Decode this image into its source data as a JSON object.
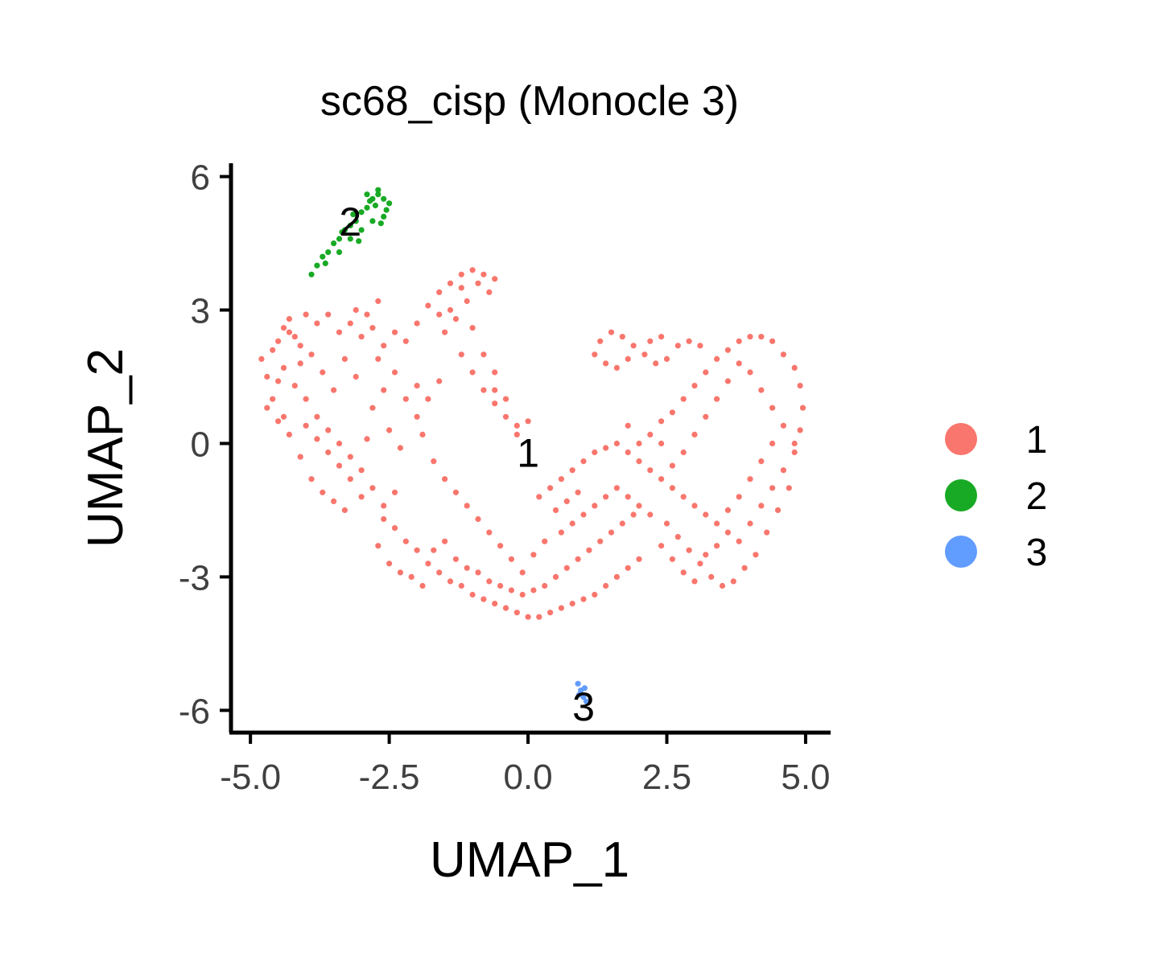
{
  "chart_data": {
    "type": "scatter",
    "title": "sc68_cisp (Monocle 3)",
    "xlabel": "UMAP_1",
    "ylabel": "UMAP_2",
    "xlim": [
      -5.35,
      5.45
    ],
    "ylim": [
      -6.5,
      6.3
    ],
    "xticks": [
      -5.0,
      -2.5,
      0.0,
      2.5,
      5.0
    ],
    "xtick_labels": [
      "-5.0",
      "-2.5",
      "0.0",
      "2.5",
      "5.0"
    ],
    "yticks": [
      -6,
      -3,
      0,
      3,
      6
    ],
    "ytick_labels": [
      "-6",
      "-3",
      "0",
      "3",
      "6"
    ],
    "legend_position": "right",
    "grid": false,
    "series": [
      {
        "name": "1",
        "color": "#F8766D",
        "label_at": [
          0.0,
          -0.2
        ],
        "points": [
          [
            -4.8,
            1.9
          ],
          [
            -4.7,
            1.5
          ],
          [
            -4.6,
            1.0
          ],
          [
            -4.5,
            0.5
          ],
          [
            -4.4,
            2.6
          ],
          [
            -4.3,
            2.8
          ],
          [
            -4.2,
            2.4
          ],
          [
            -4.3,
            0.2
          ],
          [
            -4.1,
            -0.3
          ],
          [
            -3.9,
            -0.8
          ],
          [
            -3.7,
            -1.1
          ],
          [
            -3.5,
            -1.3
          ],
          [
            -3.3,
            -1.5
          ],
          [
            -4.0,
            2.9
          ],
          [
            -3.8,
            2.7
          ],
          [
            -3.6,
            2.9
          ],
          [
            -3.4,
            2.5
          ],
          [
            -3.2,
            2.7
          ],
          [
            -3.0,
            2.4
          ],
          [
            -2.8,
            2.6
          ],
          [
            -2.6,
            2.2
          ],
          [
            -2.4,
            2.5
          ],
          [
            -2.2,
            2.3
          ],
          [
            -2.0,
            2.7
          ],
          [
            -1.8,
            3.1
          ],
          [
            -1.6,
            3.4
          ],
          [
            -1.4,
            3.6
          ],
          [
            -1.2,
            3.8
          ],
          [
            -1.0,
            3.9
          ],
          [
            -0.8,
            3.8
          ],
          [
            -0.6,
            3.7
          ],
          [
            -1.1,
            3.2
          ],
          [
            -1.3,
            2.8
          ],
          [
            -1.5,
            2.5
          ],
          [
            -1.2,
            2.0
          ],
          [
            -1.0,
            1.6
          ],
          [
            -0.8,
            1.2
          ],
          [
            -0.6,
            0.9
          ],
          [
            -0.4,
            0.6
          ],
          [
            -0.2,
            0.4
          ],
          [
            -4.6,
            2.1
          ],
          [
            -4.4,
            1.7
          ],
          [
            -4.2,
            1.3
          ],
          [
            -4.0,
            1.0
          ],
          [
            -3.8,
            0.6
          ],
          [
            -3.6,
            0.3
          ],
          [
            -3.4,
            0.0
          ],
          [
            -3.2,
            -0.3
          ],
          [
            -3.0,
            -0.6
          ],
          [
            -2.8,
            0.8
          ],
          [
            -2.6,
            1.2
          ],
          [
            -2.4,
            1.6
          ],
          [
            -2.2,
            1.0
          ],
          [
            -2.0,
            0.6
          ],
          [
            -3.1,
            1.5
          ],
          [
            -3.3,
            1.9
          ],
          [
            -3.5,
            1.2
          ],
          [
            -3.7,
            1.6
          ],
          [
            -3.9,
            2.0
          ],
          [
            -4.1,
            1.8
          ],
          [
            -2.7,
            1.9
          ],
          [
            -2.5,
            0.3
          ],
          [
            -2.3,
            -0.1
          ],
          [
            -2.9,
            0.1
          ],
          [
            -2.6,
            -1.7
          ],
          [
            -2.4,
            -1.9
          ],
          [
            -2.2,
            -2.2
          ],
          [
            -2.0,
            -2.4
          ],
          [
            -1.8,
            -2.7
          ],
          [
            -1.6,
            -2.9
          ],
          [
            -1.4,
            -3.1
          ],
          [
            -1.2,
            -3.2
          ],
          [
            -1.0,
            -3.4
          ],
          [
            -0.8,
            -3.5
          ],
          [
            -0.6,
            -3.6
          ],
          [
            -0.4,
            -3.7
          ],
          [
            -0.2,
            -3.8
          ],
          [
            0.0,
            -3.9
          ],
          [
            0.2,
            -3.9
          ],
          [
            0.4,
            -3.8
          ],
          [
            0.6,
            -3.7
          ],
          [
            0.8,
            -3.6
          ],
          [
            1.0,
            -3.5
          ],
          [
            1.2,
            -3.4
          ],
          [
            1.4,
            -3.2
          ],
          [
            1.6,
            -3.0
          ],
          [
            1.8,
            -2.8
          ],
          [
            2.0,
            -2.6
          ],
          [
            -2.7,
            -2.3
          ],
          [
            -2.5,
            -2.7
          ],
          [
            -2.3,
            -2.9
          ],
          [
            -2.1,
            -3.0
          ],
          [
            -1.9,
            -3.2
          ],
          [
            -1.7,
            -2.4
          ],
          [
            -1.5,
            -2.2
          ],
          [
            -1.3,
            -2.6
          ],
          [
            -1.1,
            -2.8
          ],
          [
            -0.9,
            -2.9
          ],
          [
            -0.7,
            -3.1
          ],
          [
            -0.5,
            -3.2
          ],
          [
            -0.3,
            -3.3
          ],
          [
            -0.1,
            -3.4
          ],
          [
            0.1,
            -3.3
          ],
          [
            0.3,
            -3.2
          ],
          [
            0.5,
            -3.0
          ],
          [
            0.7,
            -2.8
          ],
          [
            0.9,
            -2.6
          ],
          [
            1.1,
            -2.4
          ],
          [
            1.3,
            -2.2
          ],
          [
            1.5,
            -2.0
          ],
          [
            1.7,
            -1.8
          ],
          [
            1.9,
            -1.6
          ],
          [
            0.2,
            -1.2
          ],
          [
            0.4,
            -1.0
          ],
          [
            0.6,
            -0.8
          ],
          [
            0.8,
            -0.6
          ],
          [
            1.0,
            -0.4
          ],
          [
            1.2,
            -0.2
          ],
          [
            1.4,
            -0.1
          ],
          [
            1.6,
            0.0
          ],
          [
            1.8,
            -0.2
          ],
          [
            2.0,
            -0.4
          ],
          [
            2.2,
            -0.6
          ],
          [
            2.4,
            -0.8
          ],
          [
            2.6,
            -1.0
          ],
          [
            2.8,
            -1.2
          ],
          [
            3.0,
            -1.4
          ],
          [
            3.2,
            -1.6
          ],
          [
            3.4,
            -1.8
          ],
          [
            3.6,
            -2.0
          ],
          [
            3.8,
            -2.2
          ],
          [
            4.0,
            -1.8
          ],
          [
            4.2,
            -1.4
          ],
          [
            4.4,
            -1.0
          ],
          [
            4.6,
            -0.6
          ],
          [
            4.8,
            -0.2
          ],
          [
            4.9,
            0.3
          ],
          [
            4.95,
            0.8
          ],
          [
            4.9,
            1.3
          ],
          [
            4.8,
            1.7
          ],
          [
            4.6,
            2.0
          ],
          [
            4.4,
            2.3
          ],
          [
            4.2,
            2.4
          ],
          [
            4.0,
            2.4
          ],
          [
            3.8,
            2.3
          ],
          [
            3.6,
            2.1
          ],
          [
            3.4,
            1.9
          ],
          [
            3.2,
            1.6
          ],
          [
            3.0,
            1.3
          ],
          [
            2.8,
            1.0
          ],
          [
            2.6,
            0.7
          ],
          [
            2.4,
            0.5
          ],
          [
            2.2,
            0.2
          ],
          [
            2.0,
            0.0
          ],
          [
            1.8,
            0.4
          ],
          [
            2.5,
            -1.8
          ],
          [
            2.7,
            -2.1
          ],
          [
            2.9,
            -2.4
          ],
          [
            3.1,
            -2.7
          ],
          [
            3.3,
            -3.0
          ],
          [
            3.5,
            -3.2
          ],
          [
            3.7,
            -3.1
          ],
          [
            3.9,
            -2.8
          ],
          [
            4.1,
            -2.5
          ],
          [
            4.3,
            -2.0
          ],
          [
            4.5,
            -1.5
          ],
          [
            4.7,
            -1.0
          ],
          [
            4.8,
            0.0
          ],
          [
            1.3,
            2.3
          ],
          [
            1.5,
            2.5
          ],
          [
            1.7,
            2.4
          ],
          [
            1.9,
            2.2
          ],
          [
            2.1,
            2.0
          ],
          [
            2.3,
            1.8
          ],
          [
            2.5,
            1.9
          ],
          [
            2.7,
            2.2
          ],
          [
            2.9,
            2.3
          ],
          [
            3.1,
            2.2
          ],
          [
            1.2,
            2.0
          ],
          [
            1.4,
            1.8
          ],
          [
            1.6,
            1.7
          ],
          [
            1.8,
            1.9
          ],
          [
            2.2,
            2.3
          ],
          [
            2.4,
            2.4
          ],
          [
            0.6,
            -2.0
          ],
          [
            0.8,
            -1.8
          ],
          [
            1.0,
            -1.6
          ],
          [
            1.2,
            -1.4
          ],
          [
            1.4,
            -1.2
          ],
          [
            1.6,
            -1.0
          ],
          [
            1.8,
            -1.2
          ],
          [
            2.0,
            -1.4
          ],
          [
            2.2,
            -1.6
          ],
          [
            2.4,
            -2.3
          ],
          [
            2.6,
            -2.6
          ],
          [
            2.8,
            -2.9
          ],
          [
            3.0,
            -3.1
          ],
          [
            3.2,
            -2.5
          ],
          [
            3.4,
            -2.3
          ],
          [
            3.6,
            -1.5
          ],
          [
            3.8,
            -1.2
          ],
          [
            4.0,
            -0.8
          ],
          [
            4.2,
            -0.4
          ],
          [
            4.4,
            0.0
          ],
          [
            4.6,
            0.4
          ],
          [
            4.4,
            0.8
          ],
          [
            4.2,
            1.2
          ],
          [
            4.0,
            1.6
          ],
          [
            3.8,
            1.8
          ],
          [
            3.6,
            1.4
          ],
          [
            3.4,
            1.0
          ],
          [
            3.2,
            0.6
          ],
          [
            3.0,
            0.2
          ],
          [
            2.8,
            -0.2
          ],
          [
            2.6,
            -0.5
          ],
          [
            2.4,
            0.0
          ],
          [
            -0.6,
            1.6
          ],
          [
            -0.8,
            2.0
          ],
          [
            -1.6,
            1.4
          ],
          [
            -1.8,
            1.0
          ],
          [
            -2.0,
            1.3
          ],
          [
            -1.9,
            0.2
          ],
          [
            -1.7,
            -0.4
          ],
          [
            -1.5,
            -0.8
          ],
          [
            -1.3,
            -1.1
          ],
          [
            -1.1,
            -1.4
          ],
          [
            -0.9,
            -1.7
          ],
          [
            -0.7,
            -2.0
          ],
          [
            -0.5,
            -2.3
          ],
          [
            -0.3,
            -2.6
          ],
          [
            -0.1,
            -2.9
          ],
          [
            0.1,
            -2.5
          ],
          [
            0.3,
            -2.2
          ],
          [
            0.5,
            -1.5
          ],
          [
            0.7,
            -1.3
          ],
          [
            0.9,
            -1.1
          ],
          [
            -2.8,
            -1.0
          ],
          [
            -3.0,
            -1.2
          ],
          [
            -2.6,
            -1.4
          ],
          [
            -2.4,
            -1.1
          ],
          [
            -4.5,
            2.3
          ],
          [
            -4.3,
            2.5
          ],
          [
            -4.1,
            2.2
          ],
          [
            -4.5,
            1.4
          ],
          [
            -4.7,
            0.8
          ],
          [
            -4.4,
            0.6
          ],
          [
            -4.0,
            0.4
          ],
          [
            -3.8,
            0.1
          ],
          [
            -3.6,
            -0.2
          ],
          [
            -3.4,
            -0.5
          ],
          [
            -3.2,
            -0.8
          ],
          [
            -2.9,
            2.9
          ],
          [
            -2.7,
            3.2
          ],
          [
            -3.1,
            3.0
          ],
          [
            -1.2,
            3.5
          ],
          [
            -0.9,
            3.6
          ],
          [
            -0.7,
            3.4
          ],
          [
            -1.4,
            3.0
          ],
          [
            -1.6,
            2.9
          ],
          [
            -1.0,
            2.6
          ],
          [
            -0.6,
            1.2
          ],
          [
            -0.4,
            1.0
          ],
          [
            -0.2,
            0.2
          ],
          [
            0.0,
            0.5
          ]
        ]
      },
      {
        "name": "2",
        "color": "#19AA25",
        "label_at": [
          -3.2,
          5.0
        ],
        "points": [
          [
            -3.9,
            3.8
          ],
          [
            -3.8,
            4.0
          ],
          [
            -3.7,
            4.2
          ],
          [
            -3.6,
            4.3
          ],
          [
            -3.5,
            4.5
          ],
          [
            -3.4,
            4.6
          ],
          [
            -3.3,
            4.8
          ],
          [
            -3.2,
            4.9
          ],
          [
            -3.1,
            5.0
          ],
          [
            -3.0,
            5.2
          ],
          [
            -2.9,
            5.3
          ],
          [
            -2.8,
            5.5
          ],
          [
            -2.7,
            5.6
          ],
          [
            -2.6,
            5.5
          ],
          [
            -2.5,
            5.4
          ],
          [
            -2.6,
            5.1
          ],
          [
            -2.8,
            5.0
          ],
          [
            -3.0,
            4.8
          ],
          [
            -3.2,
            4.6
          ],
          [
            -3.4,
            4.3
          ],
          [
            -2.9,
            5.6
          ],
          [
            -2.7,
            5.7
          ],
          [
            -2.75,
            5.35
          ],
          [
            -3.05,
            4.55
          ],
          [
            -3.65,
            4.05
          ],
          [
            -3.35,
            4.75
          ],
          [
            -2.55,
            5.25
          ],
          [
            -2.85,
            5.45
          ],
          [
            -3.15,
            5.15
          ],
          [
            -2.65,
            4.95
          ]
        ]
      },
      {
        "name": "3",
        "color": "#619CFF",
        "label_at": [
          1.0,
          -5.9
        ],
        "points": [
          [
            0.9,
            -5.4
          ],
          [
            0.95,
            -5.55
          ],
          [
            1.0,
            -5.7
          ],
          [
            1.05,
            -5.8
          ],
          [
            0.92,
            -5.65
          ],
          [
            1.02,
            -5.5
          ]
        ]
      }
    ]
  }
}
